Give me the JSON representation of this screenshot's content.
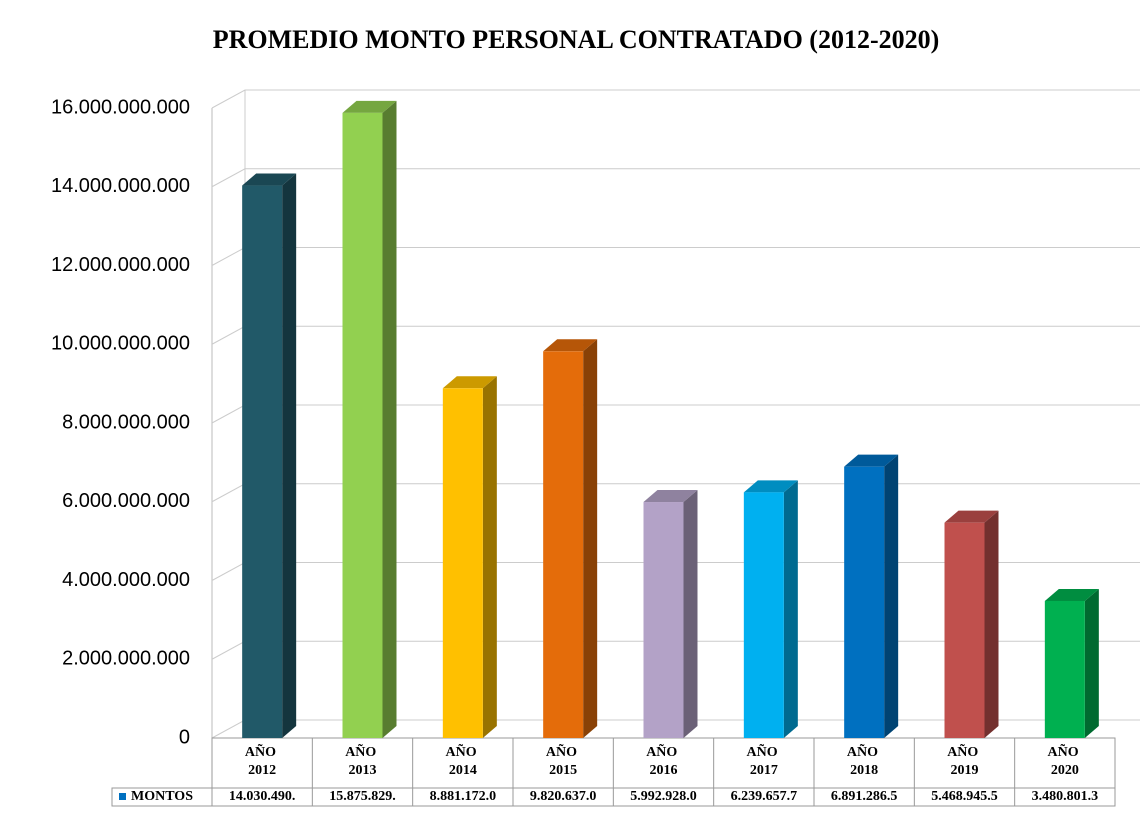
{
  "chart_data": {
    "type": "bar3d",
    "title": "PROMEDIO MONTO PERSONAL CONTRATADO (2012-2020)",
    "categories": [
      "AÑO 2012",
      "AÑO 2013",
      "AÑO 2014",
      "AÑO 2015",
      "AÑO 2016",
      "AÑO 2017",
      "AÑO 2018",
      "AÑO 2019",
      "AÑO 2020"
    ],
    "series": [
      {
        "name": "MONTOS",
        "color": "#0070c0",
        "values": [
          14030490000,
          15875829000,
          8881172000,
          9820637000,
          5992928000,
          6239657700,
          6891286500,
          5468945500,
          3480801300
        ],
        "value_labels": [
          "14.030.490.",
          "15.875.829.",
          "8.881.172.0",
          "9.820.637.0",
          "5.992.928.0",
          "6.239.657.7",
          "6.891.286.5",
          "5.468.945.5",
          "3.480.801.3"
        ]
      }
    ],
    "colors": [
      "#215968",
      "#92d050",
      "#ffc000",
      "#e46c0a",
      "#b3a2c7",
      "#00b0f0",
      "#0070c0",
      "#c0504d",
      "#00b050"
    ],
    "ylim": [
      0,
      16000000000
    ],
    "yticks": [
      0,
      {
        "value": 2000000000,
        "label": "2.000.000.000"
      },
      {
        "value": 4000000000,
        "label": "4.000.000.000"
      },
      {
        "value": 6000000000,
        "label": "6.000.000.000"
      },
      {
        "value": 8000000000,
        "label": "8.000.000.000"
      },
      {
        "value": 10000000000,
        "label": "10.000.000.000"
      },
      {
        "value": 12000000000,
        "label": "12.000.000.000"
      },
      {
        "value": 14000000000,
        "label": "14.000.000.000"
      },
      {
        "value": 16000000000,
        "label": "16.000.000.000"
      }
    ],
    "grid": true
  }
}
